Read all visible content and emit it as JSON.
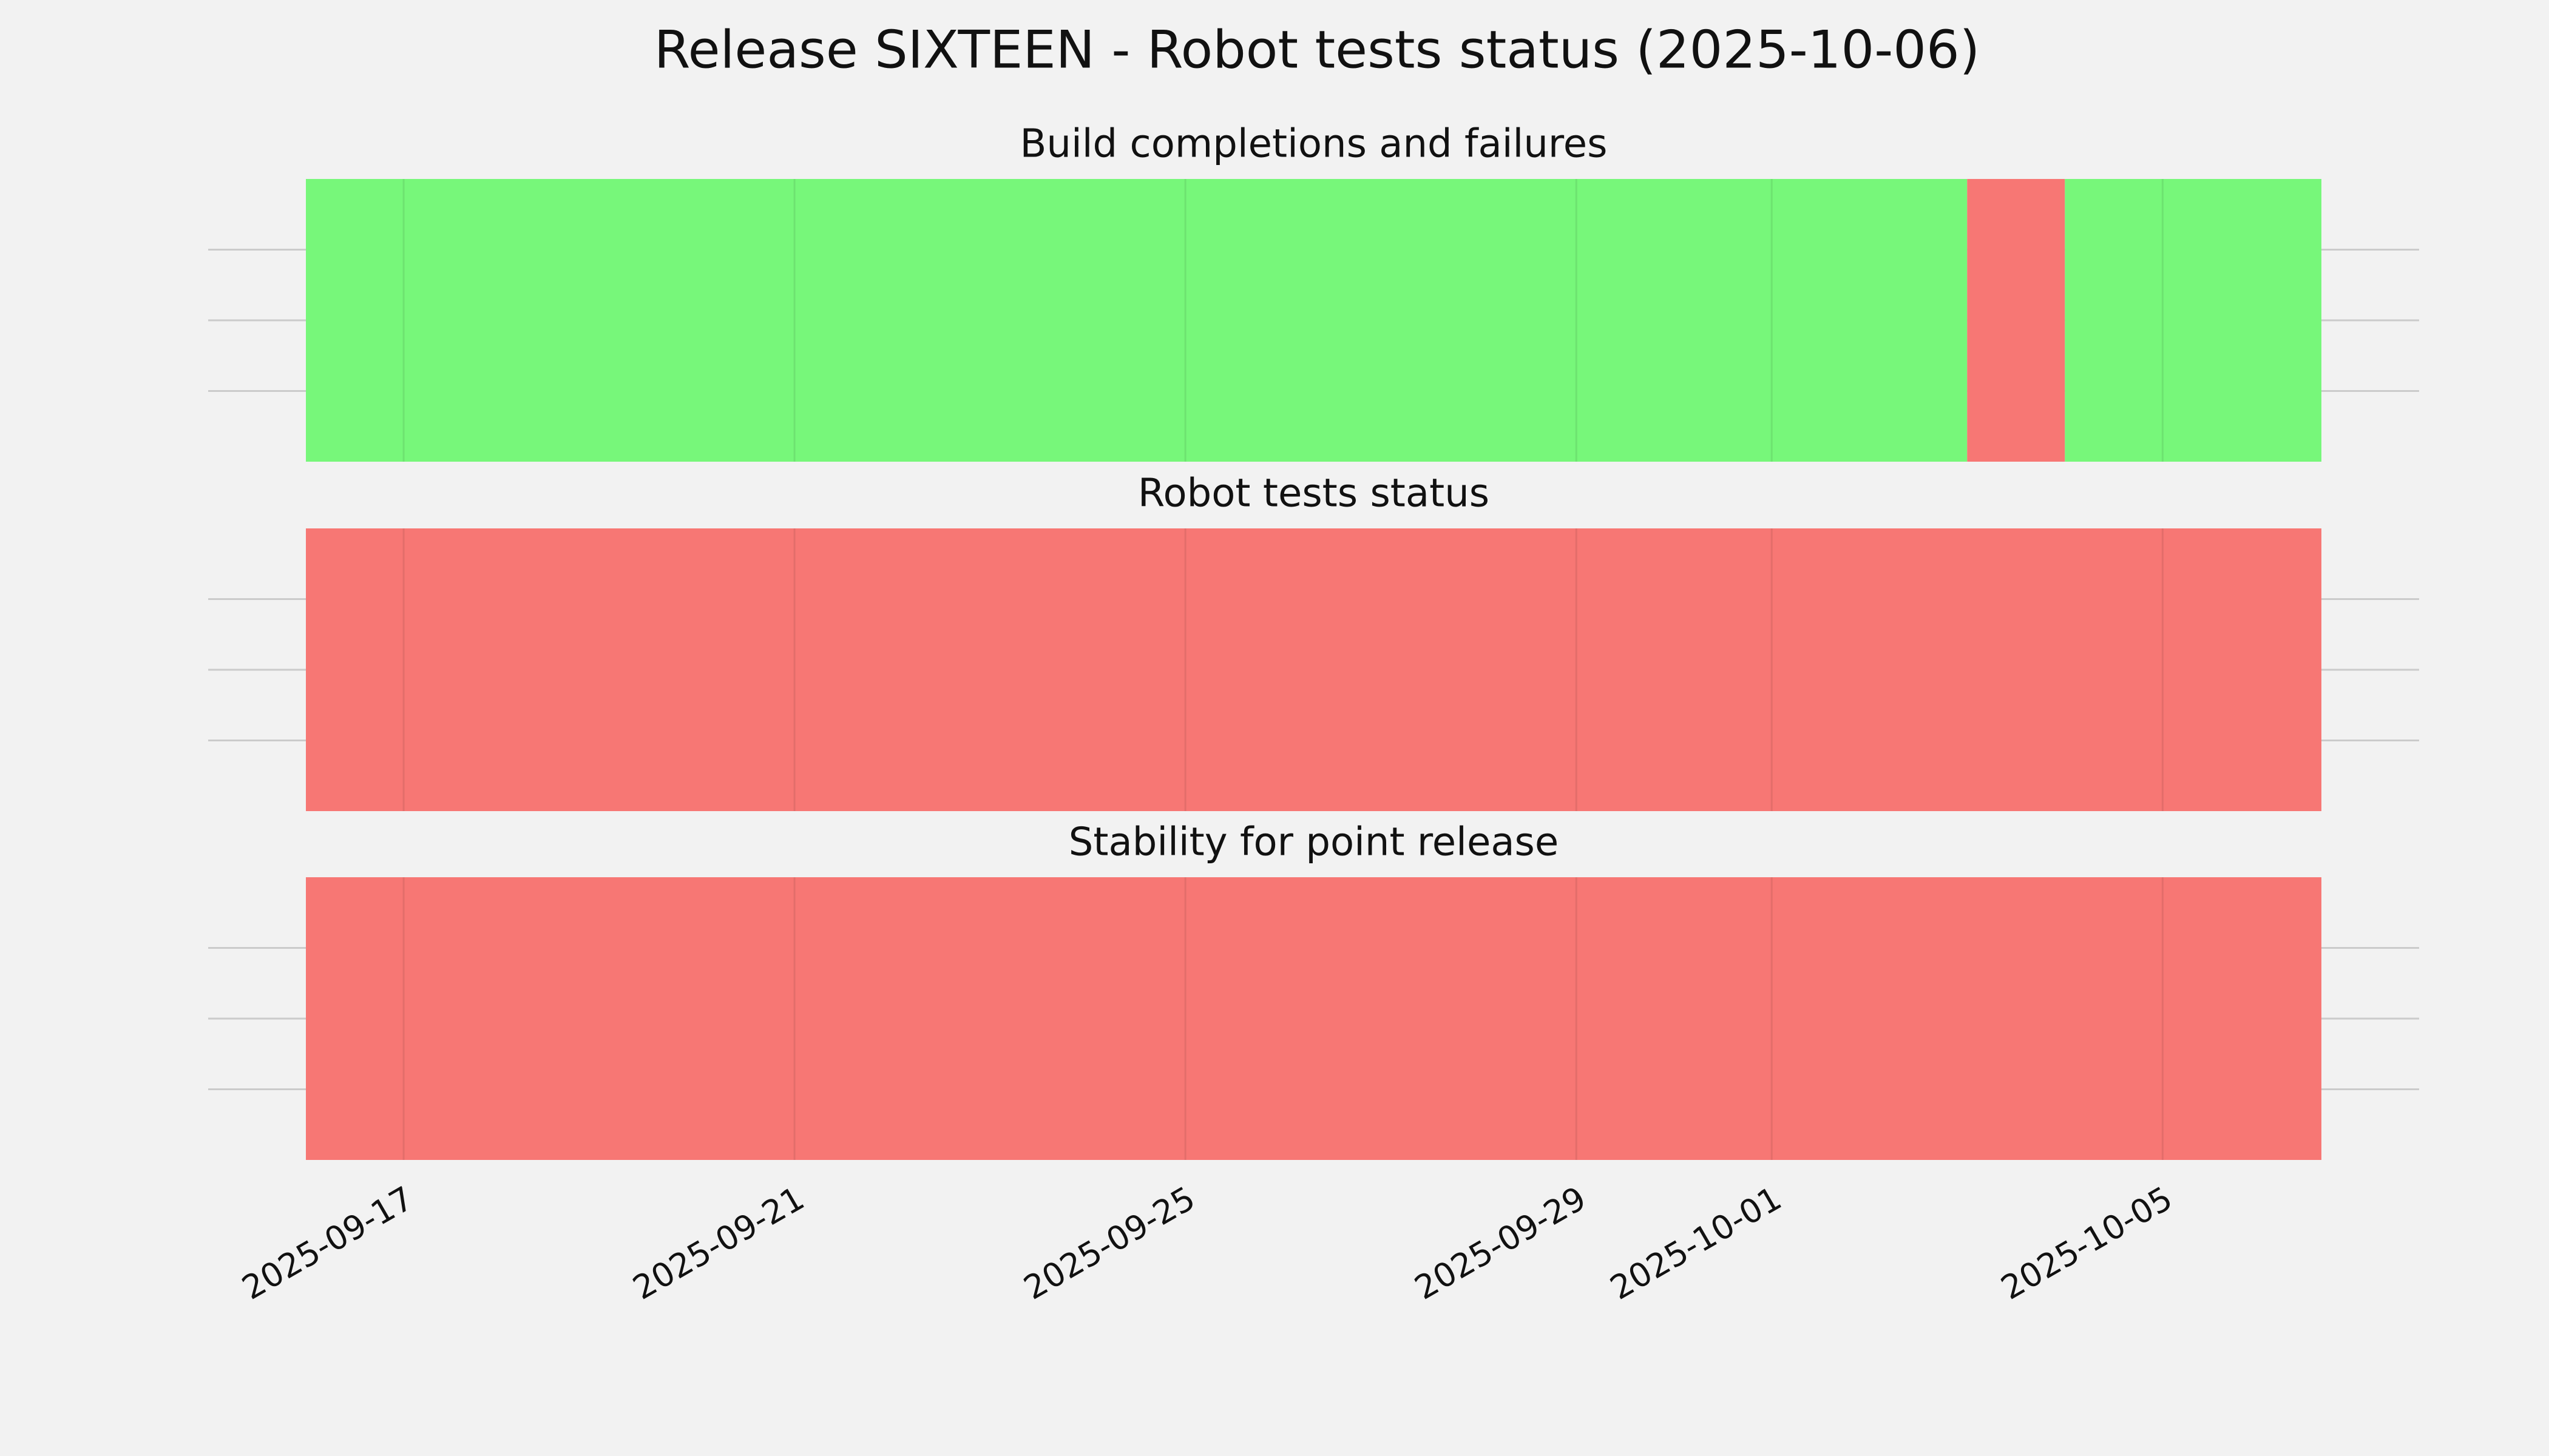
{
  "title": "Release SIXTEEN - Robot tests status (2025-10-06)",
  "chart_data": [
    {
      "type": "timeline",
      "title": "Build completions and failures",
      "xlim": [
        "2025-09-15T00:00",
        "2025-10-07T15:00"
      ],
      "xticks": [
        "2025-09-17",
        "2025-09-21",
        "2025-09-25",
        "2025-09-29",
        "2025-10-01",
        "2025-10-05"
      ],
      "ylim": [
        0,
        1
      ],
      "ygrid": [
        0.25,
        0.5,
        0.75
      ],
      "grid": true,
      "spans": [
        {
          "start": "2025-09-16",
          "end": "2025-10-03",
          "color": "#77f77a"
        },
        {
          "start": "2025-10-03",
          "end": "2025-10-04",
          "color": "#f77774"
        },
        {
          "start": "2025-10-04",
          "end": "2025-10-06T15:00",
          "color": "#77f77a"
        }
      ]
    },
    {
      "type": "timeline",
      "title": "Robot tests status",
      "xlim": [
        "2025-09-15T00:00",
        "2025-10-07T15:00"
      ],
      "xticks": [
        "2025-09-17",
        "2025-09-21",
        "2025-09-25",
        "2025-09-29",
        "2025-10-01",
        "2025-10-05"
      ],
      "ylim": [
        0,
        1
      ],
      "ygrid": [
        0.25,
        0.5,
        0.75
      ],
      "grid": true,
      "spans": [
        {
          "start": "2025-09-16",
          "end": "2025-10-06T15:00",
          "color": "#f77774"
        }
      ]
    },
    {
      "type": "timeline",
      "title": "Stability for point release",
      "xlim": [
        "2025-09-15T00:00",
        "2025-10-07T15:00"
      ],
      "xticks": [
        "2025-09-17",
        "2025-09-21",
        "2025-09-25",
        "2025-09-29",
        "2025-10-01",
        "2025-10-05"
      ],
      "ylim": [
        0,
        1
      ],
      "ygrid": [
        0.25,
        0.5,
        0.75
      ],
      "grid": true,
      "show_xtick_labels": true,
      "spans": [
        {
          "start": "2025-09-16",
          "end": "2025-10-06T15:00",
          "color": "#f77774"
        }
      ]
    }
  ]
}
